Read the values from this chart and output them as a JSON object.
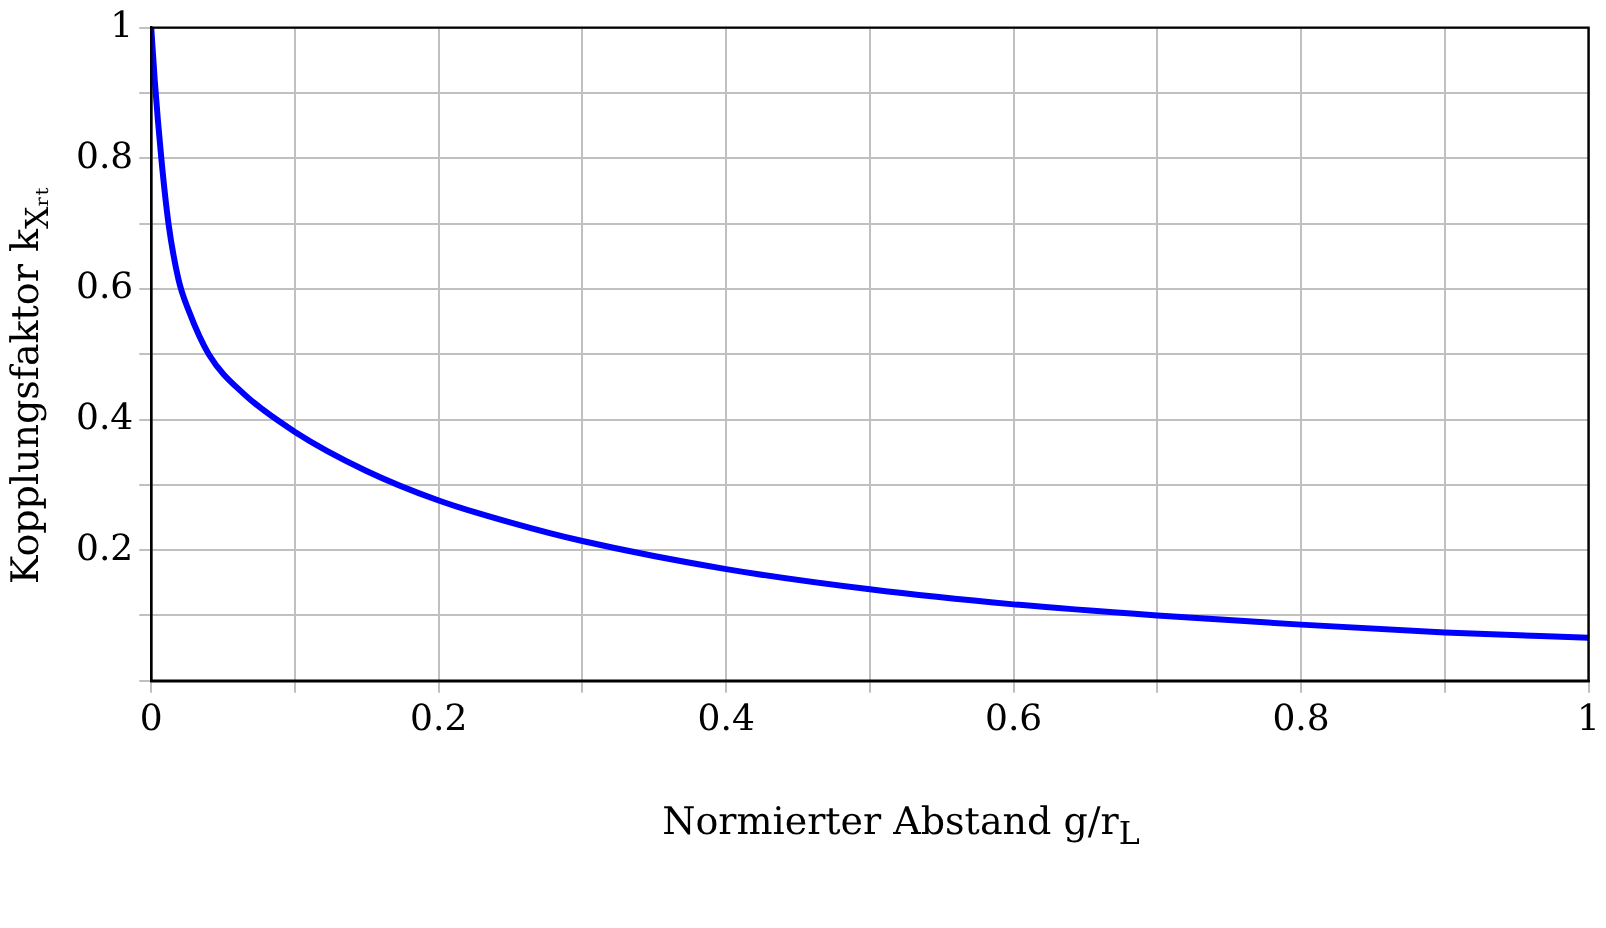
{
  "chart_data": {
    "type": "line",
    "xlabel": "Normierter Abstand g/r$_{L}$",
    "ylabel": "Kopplungsfaktor k$_{Xᵣₜ}$",
    "x": [
      0,
      0.0024,
      0.007,
      0.012,
      0.019,
      0.026,
      0.04,
      0.064,
      0.1,
      0.149,
      0.2,
      0.249,
      0.3,
      0.4,
      0.5,
      0.6,
      0.7,
      0.8,
      0.9,
      1
    ],
    "series": [
      {
        "color": "#0000ff",
        "values": [
          1,
          0.92,
          0.8,
          0.7,
          0.614,
          0.567,
          0.5,
          0.44,
          0.381,
          0.322,
          0.276,
          0.243,
          0.214,
          0.171,
          0.14,
          0.117,
          0.1,
          0.086,
          0.074,
          0.066
        ]
      }
    ],
    "xlim": [
      0,
      1
    ],
    "ylim": [
      0,
      1
    ],
    "xticks": [
      0,
      {
        "value": 0.1,
        "label": null
      },
      0.2,
      {
        "value": 0.3,
        "label": null
      },
      0.4,
      {
        "value": 0.5,
        "label": null
      },
      0.6,
      {
        "value": 0.7,
        "label": null
      },
      0.8,
      {
        "value": 0.9,
        "label": null
      },
      1
    ],
    "yticks": [
      {
        "value": 0,
        "label": null
      },
      {
        "value": 0.1,
        "label": null
      },
      0.2,
      {
        "value": 0.3,
        "label": null
      },
      0.4,
      {
        "value": 0.5,
        "label": null
      },
      0.6,
      {
        "value": 0.7,
        "label": null
      },
      0.8,
      {
        "value": 0.9,
        "label": null
      },
      1
    ],
    "grid": true,
    "legend": false,
    "marker": "none",
    "line_style": "solid"
  }
}
